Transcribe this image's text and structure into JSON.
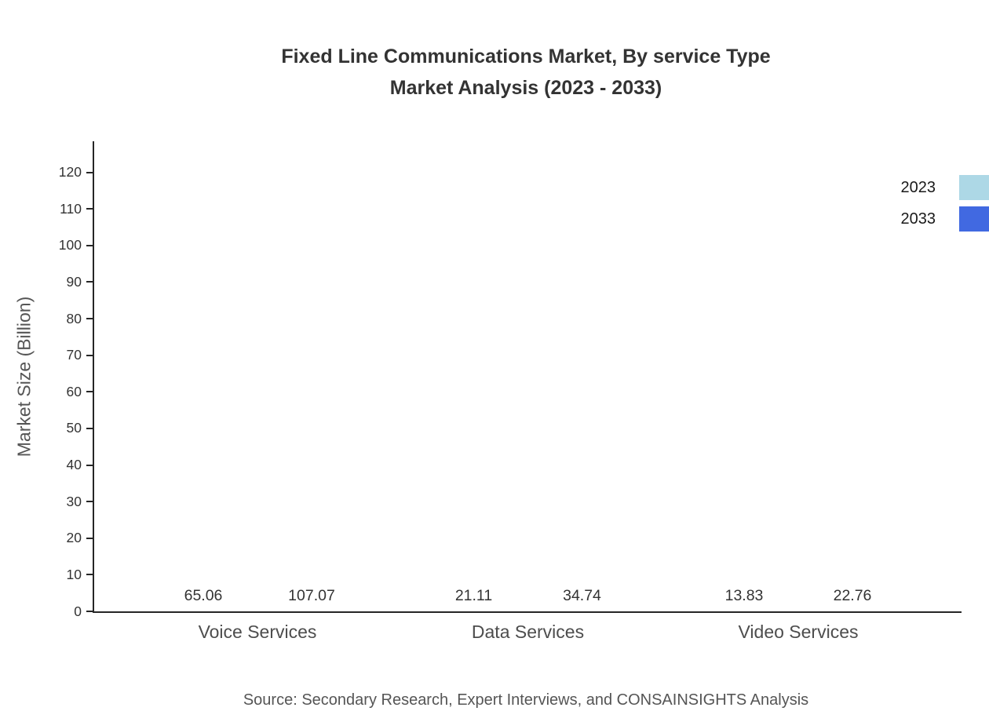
{
  "title": {
    "line1": "Fixed Line Communications Market, By service Type",
    "line2": "Market Analysis (2023 - 2033)"
  },
  "footer": {
    "source": "Source: Secondary Research, Expert Interviews, and CONSAINSIGHTS Analysis"
  },
  "chart_data": {
    "type": "bar",
    "title": "Fixed Line Communications Market, By service Type Market Analysis (2023 - 2033)",
    "categories": [
      "Voice Services",
      "Data Services",
      "Video Services"
    ],
    "series": [
      {
        "name": "2023",
        "color": "#ADD8E6",
        "values": [
          65.06,
          21.11,
          13.83
        ]
      },
      {
        "name": "2033",
        "color": "#4169E1",
        "values": [
          107.07,
          34.74,
          22.76
        ]
      }
    ],
    "xlabel": "",
    "ylabel": "Market Size (Billion)",
    "ylim": [
      0,
      128.5
    ],
    "yticks": [
      0,
      10,
      20,
      30,
      40,
      50,
      60,
      70,
      80,
      90,
      100,
      110,
      120
    ],
    "grid": false,
    "legend_position": "top-right",
    "value_label_decimals": 2
  }
}
